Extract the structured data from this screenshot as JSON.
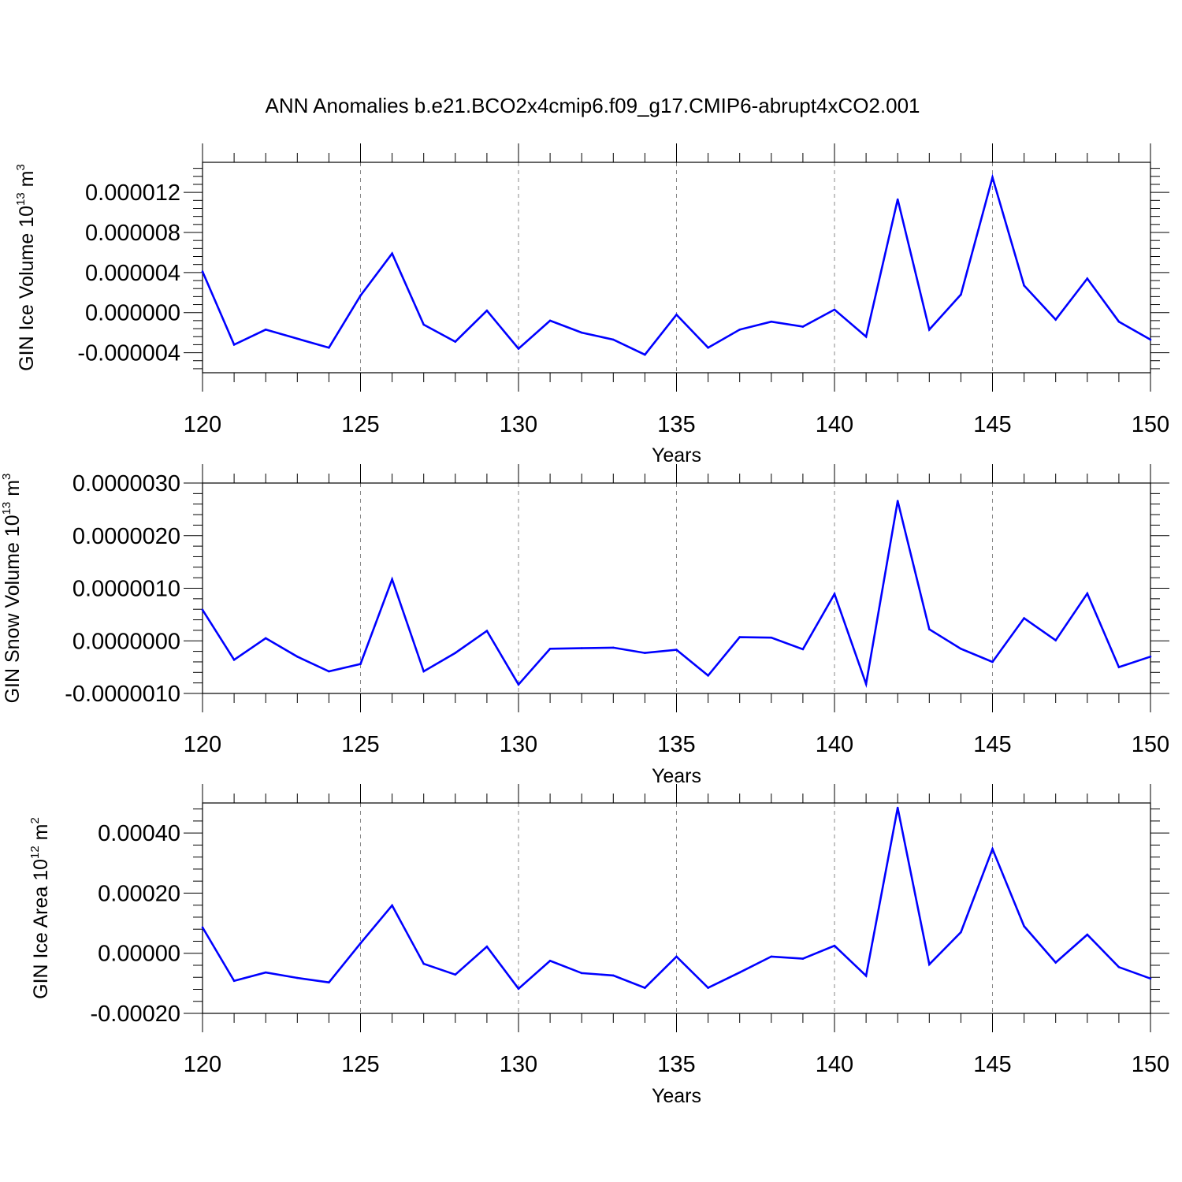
{
  "title": "ANN Anomalies b.e21.BCO2x4cmip6.f09_g17.CMIP6-abrupt4xCO2.001",
  "colors": {
    "line": "#0000ff",
    "axis": "#000000",
    "grid": "#888888"
  },
  "chart_data": [
    {
      "type": "line",
      "ylabel_main": "GIN Ice Volume 10",
      "ylabel_exp": "13",
      "ylabel_unit": " m",
      "ylabel_unit_exp": "3",
      "xlabel": "Years",
      "xlim": [
        120,
        150
      ],
      "ylim": [
        -6e-06,
        1.5e-05
      ],
      "xticks": [
        "120",
        "125",
        "130",
        "135",
        "140",
        "145",
        "150"
      ],
      "yticks": [
        "-0.000004",
        "0.000000",
        "0.000004",
        "0.000008",
        "0.000012"
      ],
      "ytick_values": [
        -4e-06,
        0.0,
        4e-06,
        8e-06,
        1.2e-05
      ],
      "grid": "vertical-dashed",
      "x": [
        120,
        121,
        122,
        123,
        124,
        125,
        126,
        127,
        128,
        129,
        130,
        131,
        132,
        133,
        134,
        135,
        136,
        137,
        138,
        139,
        140,
        141,
        142,
        143,
        144,
        145,
        146,
        147,
        148,
        149,
        150
      ],
      "values": [
        4.1e-06,
        -3.2e-06,
        -1.7e-06,
        -2.6e-06,
        -3.5e-06,
        1.7e-06,
        5.9e-06,
        -1.2e-06,
        -2.9e-06,
        2e-07,
        -3.6e-06,
        -8e-07,
        -2e-06,
        -2.7e-06,
        -4.2e-06,
        -2e-07,
        -3.5e-06,
        -1.7e-06,
        -9e-07,
        -1.4e-06,
        3e-07,
        -2.4e-06,
        1.13e-05,
        -1.7e-06,
        1.8e-06,
        1.35e-05,
        2.7e-06,
        -7e-07,
        3.4e-06,
        -9e-07,
        -2.7e-06
      ]
    },
    {
      "type": "line",
      "ylabel_main": "GIN Snow Volume 10",
      "ylabel_exp": "13",
      "ylabel_unit": " m",
      "ylabel_unit_exp": "3",
      "xlabel": "Years",
      "xlim": [
        120,
        150
      ],
      "ylim": [
        -1e-06,
        3e-06
      ],
      "xticks": [
        "120",
        "125",
        "130",
        "135",
        "140",
        "145",
        "150"
      ],
      "yticks": [
        "-0.0000010",
        "0.0000000",
        "0.0000010",
        "0.0000020",
        "0.0000030"
      ],
      "ytick_values": [
        -1e-06,
        0.0,
        1e-06,
        2e-06,
        3e-06
      ],
      "grid": "vertical-dashed",
      "x": [
        120,
        121,
        122,
        123,
        124,
        125,
        126,
        127,
        128,
        129,
        130,
        131,
        132,
        133,
        134,
        135,
        136,
        137,
        138,
        139,
        140,
        141,
        142,
        143,
        144,
        145,
        146,
        147,
        148,
        149,
        150
      ],
      "values": [
        5.9e-07,
        -3.6e-07,
        5e-08,
        -3e-07,
        -5.8e-07,
        -4.4e-07,
        1.17e-06,
        -5.8e-07,
        -2.3e-07,
        1.9e-07,
        -8.3e-07,
        -1.5e-07,
        -1.4e-07,
        -1.3e-07,
        -2.3e-07,
        -1.7e-07,
        -6.6e-07,
        7e-08,
        6e-08,
        -1.6e-07,
        8.9e-07,
        -8.2e-07,
        2.66e-06,
        2.2e-07,
        -1.5e-07,
        -4e-07,
        4.3e-07,
        1e-08,
        9e-07,
        -5e-07,
        -3e-07
      ]
    },
    {
      "type": "line",
      "ylabel_main": "GIN Ice Area 10",
      "ylabel_exp": "12",
      "ylabel_unit": " m",
      "ylabel_unit_exp": "2",
      "xlabel": "Years",
      "xlim": [
        120,
        150
      ],
      "ylim": [
        -0.0002,
        0.0005
      ],
      "xticks": [
        "120",
        "125",
        "130",
        "135",
        "140",
        "145",
        "150"
      ],
      "yticks": [
        "-0.00020",
        "0.00000",
        "0.00020",
        "0.00040"
      ],
      "ytick_values": [
        -0.0002,
        0.0,
        0.0002,
        0.0004
      ],
      "grid": "vertical-dashed",
      "x": [
        120,
        121,
        122,
        123,
        124,
        125,
        126,
        127,
        128,
        129,
        130,
        131,
        132,
        133,
        134,
        135,
        136,
        137,
        138,
        139,
        140,
        141,
        142,
        143,
        144,
        145,
        146,
        147,
        148,
        149,
        150
      ],
      "values": [
        8.6e-05,
        -9.2e-05,
        -6.4e-05,
        -8.2e-05,
        -9.7e-05,
        3.3e-05,
        0.000159,
        -3.5e-05,
        -7.1e-05,
        2.2e-05,
        -0.000118,
        -2.5e-05,
        -6.6e-05,
        -7.4e-05,
        -0.000115,
        -1.1e-05,
        -0.000115,
        -6.4e-05,
        -1.1e-05,
        -1.8e-05,
        2.5e-05,
        -7.5e-05,
        0.000484,
        -3.7e-05,
        7e-05,
        0.000347,
        9e-05,
        -3.1e-05,
        6.2e-05,
        -4.6e-05,
        -8.4e-05
      ]
    }
  ]
}
